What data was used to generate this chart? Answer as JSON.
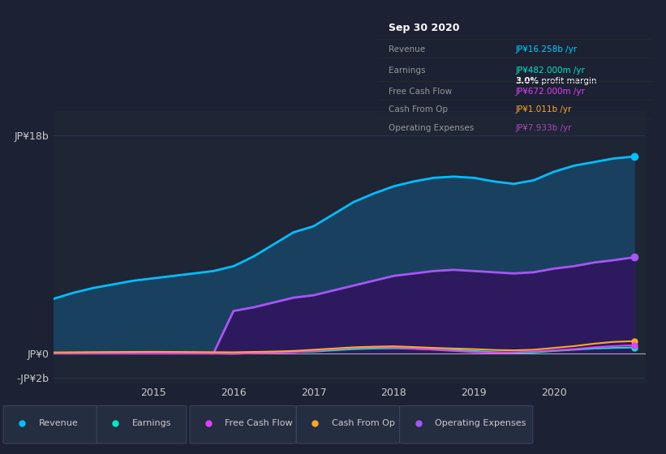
{
  "bg_color": "#1c2133",
  "plot_bg_color": "#1e2535",
  "grid_color": "#2a3350",
  "title": "Sep 30 2020",
  "table_rows": [
    {
      "label": "Revenue",
      "value": "JP¥16.258b /yr",
      "value_color": "#00d4ff"
    },
    {
      "label": "Earnings",
      "value": "JP¥482.000m /yr",
      "value_color": "#00e8c8"
    },
    {
      "label": "",
      "value": "3.0% profit margin",
      "value_color": "#ffffff",
      "bold_prefix": "3.0%"
    },
    {
      "label": "Free Cash Flow",
      "value": "JP¥672.000m /yr",
      "value_color": "#e040fb"
    },
    {
      "label": "Cash From Op",
      "value": "JP¥1.011b /yr",
      "value_color": "#ffa726"
    },
    {
      "label": "Operating Expenses",
      "value": "JP¥7.933b /yr",
      "value_color": "#ab47bc"
    }
  ],
  "years": [
    2013.75,
    2014.0,
    2014.25,
    2014.5,
    2014.75,
    2015.0,
    2015.25,
    2015.5,
    2015.75,
    2016.0,
    2016.25,
    2016.5,
    2016.75,
    2017.0,
    2017.25,
    2017.5,
    2017.75,
    2018.0,
    2018.25,
    2018.5,
    2018.75,
    2019.0,
    2019.25,
    2019.5,
    2019.75,
    2020.0,
    2020.25,
    2020.5,
    2020.75,
    2021.0
  ],
  "revenue": [
    4.5,
    5.0,
    5.4,
    5.7,
    6.0,
    6.2,
    6.4,
    6.6,
    6.8,
    7.2,
    8.0,
    9.0,
    10.0,
    10.5,
    11.5,
    12.5,
    13.2,
    13.8,
    14.2,
    14.5,
    14.6,
    14.5,
    14.2,
    14.0,
    14.3,
    15.0,
    15.5,
    15.8,
    16.1,
    16.258
  ],
  "operating_expenses": [
    0.0,
    0.0,
    0.0,
    0.0,
    0.0,
    0.0,
    0.0,
    0.0,
    0.0,
    3.5,
    3.8,
    4.2,
    4.6,
    4.8,
    5.2,
    5.6,
    6.0,
    6.4,
    6.6,
    6.8,
    6.9,
    6.8,
    6.7,
    6.6,
    6.7,
    7.0,
    7.2,
    7.5,
    7.7,
    7.933
  ],
  "earnings": [
    0.05,
    0.06,
    0.07,
    0.08,
    0.09,
    0.1,
    0.08,
    0.06,
    0.04,
    0.05,
    0.08,
    0.1,
    0.12,
    0.15,
    0.25,
    0.35,
    0.4,
    0.42,
    0.38,
    0.32,
    0.28,
    0.2,
    0.1,
    0.05,
    0.08,
    0.2,
    0.3,
    0.4,
    0.45,
    0.482
  ],
  "free_cash_flow": [
    0.03,
    0.04,
    0.05,
    0.06,
    0.06,
    0.05,
    0.04,
    0.03,
    -0.02,
    -0.05,
    0.02,
    0.05,
    0.1,
    0.2,
    0.35,
    0.45,
    0.5,
    0.48,
    0.4,
    0.3,
    0.2,
    0.1,
    0.05,
    0.08,
    0.15,
    0.25,
    0.35,
    0.5,
    0.6,
    0.672
  ],
  "cash_from_op": [
    0.08,
    0.09,
    0.1,
    0.11,
    0.12,
    0.13,
    0.12,
    0.11,
    0.1,
    0.09,
    0.12,
    0.15,
    0.2,
    0.3,
    0.4,
    0.5,
    0.55,
    0.58,
    0.52,
    0.45,
    0.4,
    0.35,
    0.28,
    0.25,
    0.3,
    0.45,
    0.6,
    0.8,
    0.95,
    1.011
  ],
  "revenue_color": "#00bfff",
  "revenue_fill": "#1a4060",
  "operating_expenses_color": "#a855f7",
  "operating_expenses_fill": "#2d1a5e",
  "earnings_color": "#00e8c8",
  "free_cash_flow_color": "#e040fb",
  "cash_from_op_color": "#ffa726",
  "ylim": [
    -2.5,
    20.0
  ],
  "ytick_positions": [
    -2.0,
    0.0,
    18.0
  ],
  "ytick_labels": [
    "-JP¥2b",
    "JP¥0",
    "JP¥18b"
  ],
  "xticks": [
    2015,
    2016,
    2017,
    2018,
    2019,
    2020
  ],
  "legend_items": [
    {
      "label": "Revenue",
      "color": "#00bfff"
    },
    {
      "label": "Earnings",
      "color": "#00e8c8"
    },
    {
      "label": "Free Cash Flow",
      "color": "#e040fb"
    },
    {
      "label": "Cash From Op",
      "color": "#ffa726"
    },
    {
      "label": "Operating Expenses",
      "color": "#a855f7"
    }
  ]
}
